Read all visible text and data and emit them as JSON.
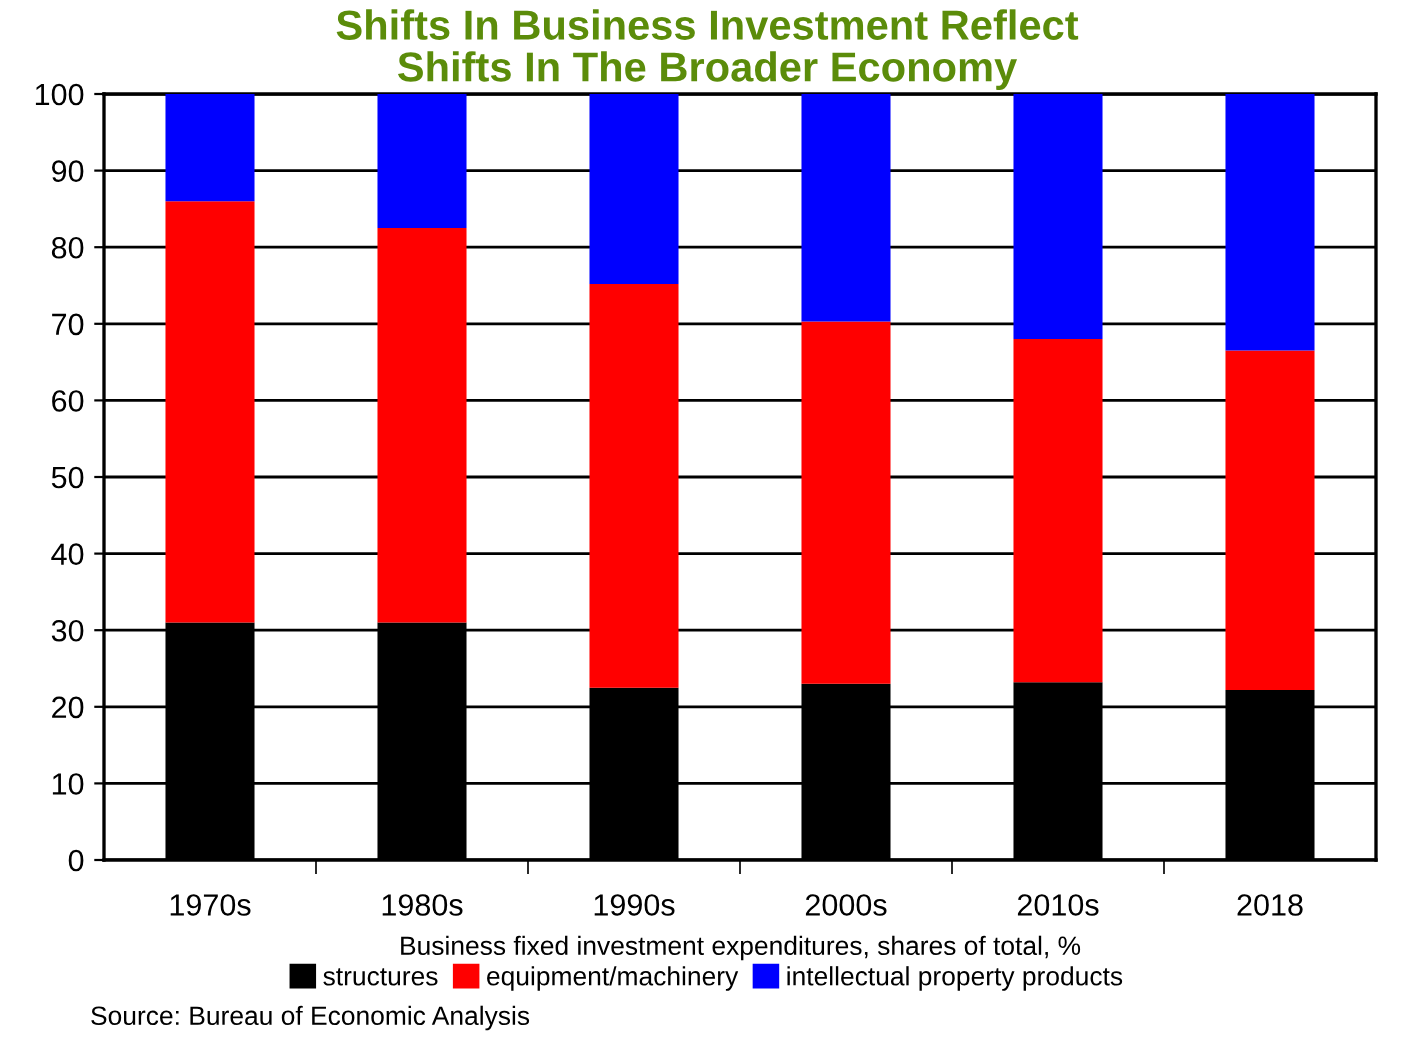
{
  "chart_data": {
    "type": "bar",
    "title": "Shifts In Business Investment Reflect\nShifts In The Broader Economy",
    "xlabel": "Business fixed investment expenditures, shares of total, %",
    "categories": [
      "1970s",
      "1980s",
      "1990s",
      "2000s",
      "2010s",
      "2018"
    ],
    "stacked": true,
    "ylim": [
      0,
      100
    ],
    "yticks": [
      0,
      10,
      20,
      30,
      40,
      50,
      60,
      70,
      80,
      90,
      100
    ],
    "grid": "y",
    "legend": "bottom",
    "series": [
      {
        "name": "structures",
        "color": "#000000",
        "values": [
          31,
          31,
          22.5,
          23,
          23.2,
          22.2
        ]
      },
      {
        "name": "equipment/machinery",
        "color": "#ff0000",
        "values": [
          55,
          51.5,
          52.7,
          47.3,
          44.8,
          44.3
        ]
      },
      {
        "name": "intellectual property products",
        "color": "#0000ff",
        "values": [
          14,
          17.5,
          24.8,
          29.7,
          32,
          33.5
        ]
      }
    ],
    "annotations": [
      "Source: Bureau of Economic Analysis"
    ]
  }
}
